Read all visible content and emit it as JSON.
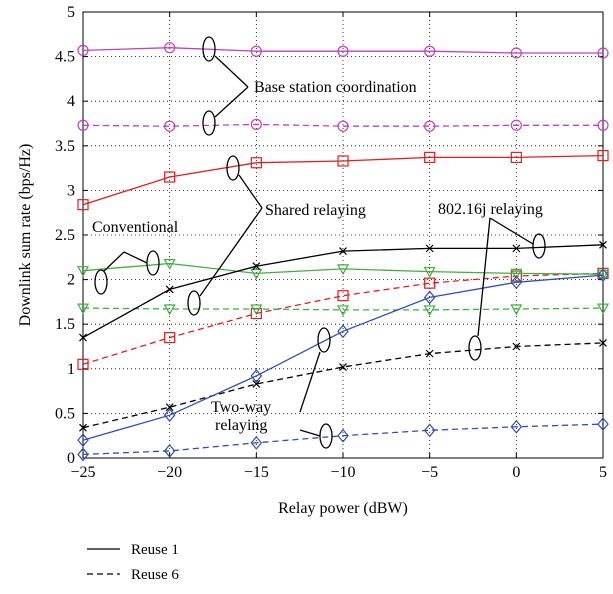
{
  "chart_data": {
    "type": "line",
    "xlabel": "Relay power (dBW)",
    "ylabel": "Downlink sum rate (bps/Hz)",
    "xlim": [
      -25,
      5
    ],
    "ylim": [
      0,
      5
    ],
    "xticks": [
      -25,
      -20,
      -15,
      -10,
      -5,
      0,
      5
    ],
    "yticks": [
      0,
      0.5,
      1,
      1.5,
      2,
      2.5,
      3,
      3.5,
      4,
      4.5,
      5
    ],
    "xtick_labels": [
      "−25",
      "−20",
      "−15",
      "−10",
      "−5",
      "0",
      "5"
    ],
    "ytick_labels": [
      "0",
      "0.5",
      "1",
      "1.5",
      "2",
      "2.5",
      "3",
      "3.5",
      "4",
      "4.5",
      "5"
    ],
    "grid": true,
    "x": [
      -25,
      -20,
      -15,
      -10,
      -5,
      0,
      5
    ],
    "series": [
      {
        "group": "Base station coordination",
        "reuse": 1,
        "style": "solid",
        "marker": "circle",
        "color": "#c040c0",
        "values": [
          4.57,
          4.6,
          4.56,
          4.56,
          4.56,
          4.54,
          4.54
        ]
      },
      {
        "group": "Base station coordination",
        "reuse": 6,
        "style": "dashed",
        "marker": "circle",
        "color": "#c040c0",
        "values": [
          3.73,
          3.72,
          3.74,
          3.72,
          3.72,
          3.73,
          3.73
        ]
      },
      {
        "group": "Shared relaying",
        "reuse": 1,
        "style": "solid",
        "marker": "square",
        "color": "#e02020",
        "values": [
          2.84,
          3.15,
          3.31,
          3.33,
          3.37,
          3.37,
          3.39
        ]
      },
      {
        "group": "Shared relaying",
        "reuse": 6,
        "style": "dashed",
        "marker": "square",
        "color": "#e02020",
        "values": [
          1.05,
          1.35,
          1.62,
          1.82,
          1.96,
          2.04,
          2.07
        ]
      },
      {
        "group": "Conventional",
        "reuse": 1,
        "style": "solid",
        "marker": "triangle-down",
        "color": "#40b040",
        "values": [
          2.1,
          2.18,
          2.07,
          2.12,
          2.09,
          2.07,
          2.06
        ]
      },
      {
        "group": "Conventional",
        "reuse": 6,
        "style": "dashed",
        "marker": "triangle-down",
        "color": "#40b040",
        "values": [
          1.68,
          1.67,
          1.67,
          1.66,
          1.66,
          1.67,
          1.68
        ]
      },
      {
        "group": "802.16j relaying",
        "reuse": 1,
        "style": "solid",
        "marker": "x",
        "color": "#000000",
        "values": [
          1.35,
          1.89,
          2.15,
          2.32,
          2.35,
          2.35,
          2.39
        ]
      },
      {
        "group": "802.16j relaying",
        "reuse": 6,
        "style": "dashed",
        "marker": "x",
        "color": "#000000",
        "values": [
          0.34,
          0.57,
          0.83,
          1.02,
          1.17,
          1.25,
          1.29
        ]
      },
      {
        "group": "Two-way relaying",
        "reuse": 1,
        "style": "solid",
        "marker": "diamond",
        "color": "#3050b0",
        "values": [
          0.2,
          0.48,
          0.92,
          1.42,
          1.8,
          1.97,
          2.05
        ]
      },
      {
        "group": "Two-way relaying",
        "reuse": 6,
        "style": "dashed",
        "marker": "diamond",
        "color": "#3050b0",
        "values": [
          0.04,
          0.08,
          0.17,
          0.25,
          0.31,
          0.35,
          0.38
        ]
      }
    ],
    "annotations": {
      "base_station": "Base station coordination",
      "shared": "Shared relaying",
      "conventional": "Conventional",
      "relay80216j": "802.16j relaying",
      "two_way_line1": "Two-way",
      "two_way_line2": "relaying"
    },
    "legend": [
      {
        "label": "Reuse 1",
        "style": "solid"
      },
      {
        "label": "Reuse 6",
        "style": "dashed"
      }
    ]
  }
}
